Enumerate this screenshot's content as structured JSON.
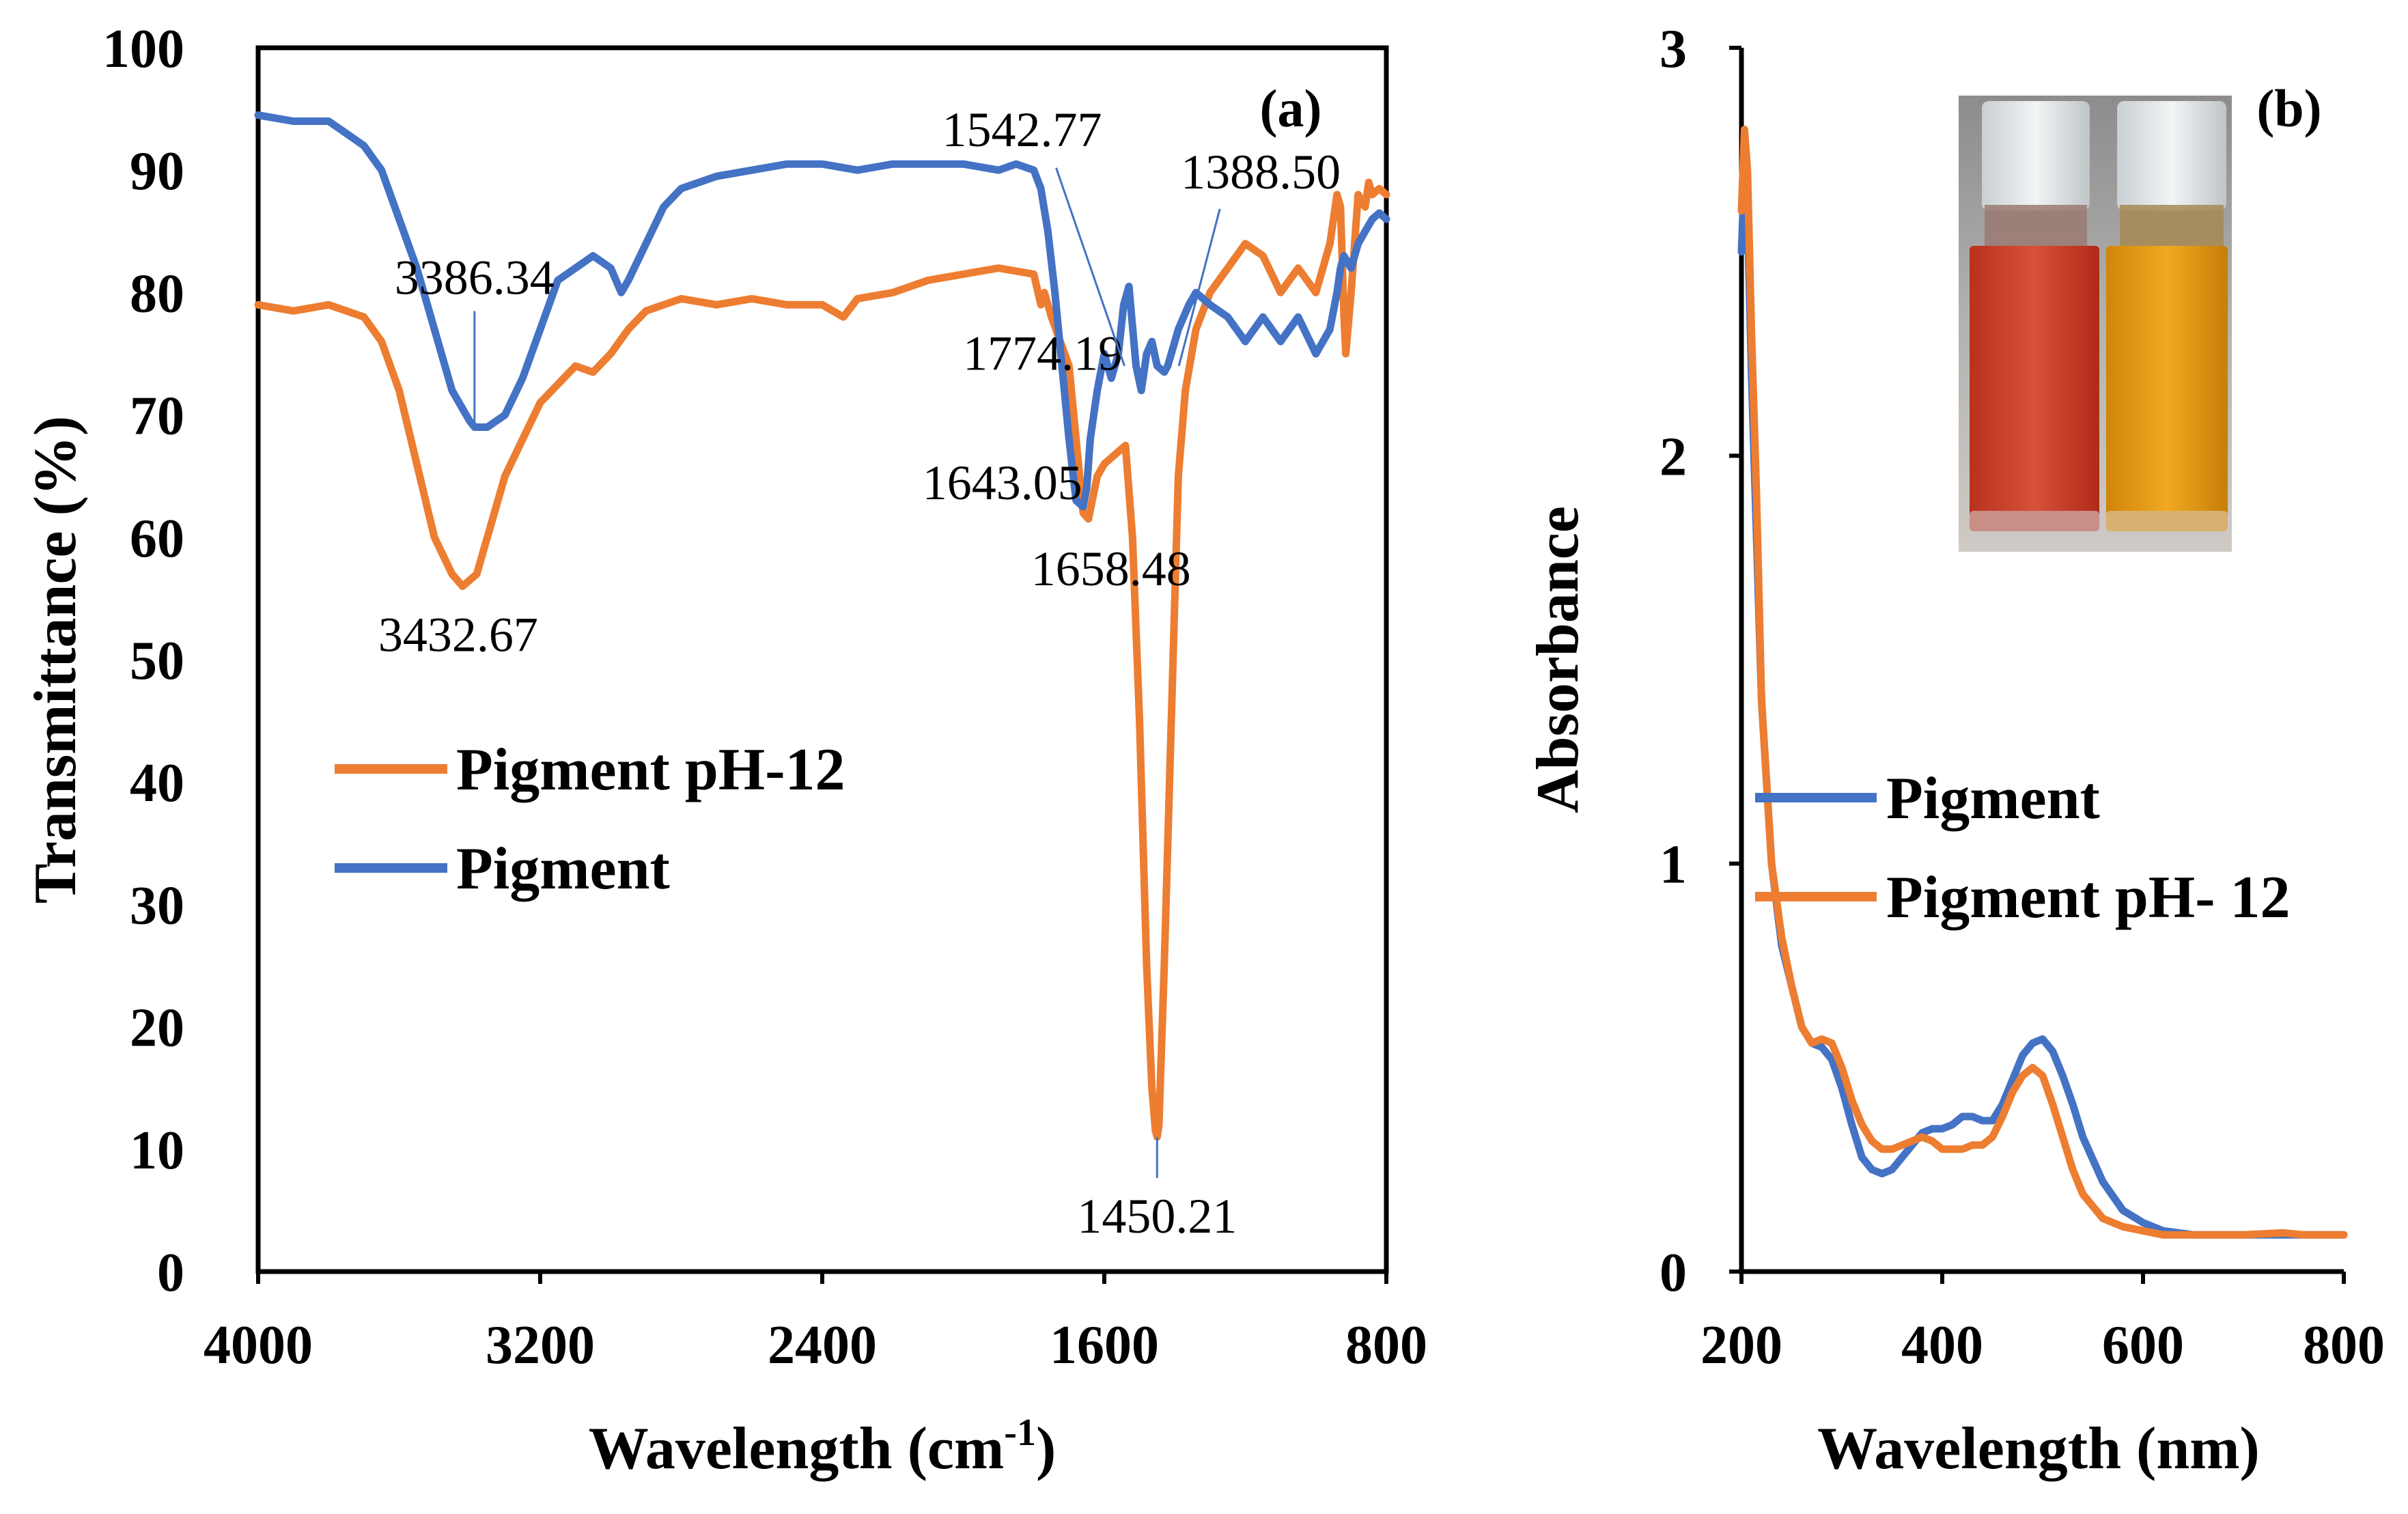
{
  "chart_data": [
    {
      "type": "line",
      "panel": "(a)",
      "xlabel": "Wavelength (cm",
      "xlabel_sup": "-1",
      "xlabel_end": ")",
      "ylabel": "Transmittance (%)",
      "xlim": [
        4000,
        800
      ],
      "ylim": [
        0,
        100
      ],
      "xticks": [
        "4000",
        "3200",
        "2400",
        "1600",
        "800"
      ],
      "xtick_values": [
        4000,
        3200,
        2400,
        1600,
        800
      ],
      "yticks": [
        "0",
        "10",
        "20",
        "30",
        "40",
        "50",
        "60",
        "70",
        "80",
        "90",
        "100"
      ],
      "ytick_values": [
        0,
        10,
        20,
        30,
        40,
        50,
        60,
        70,
        80,
        90,
        100
      ],
      "legend_position": "center-left",
      "series": [
        {
          "name": "Pigment pH-12",
          "color": "#ED7D31",
          "x": [
            4000,
            3900,
            3800,
            3700,
            3650,
            3600,
            3550,
            3500,
            3450,
            3420,
            3380,
            3340,
            3300,
            3250,
            3200,
            3150,
            3100,
            3050,
            3000,
            2950,
            2900,
            2850,
            2800,
            2700,
            2600,
            2500,
            2400,
            2340,
            2300,
            2200,
            2100,
            2000,
            1900,
            1800,
            1780,
            1770,
            1750,
            1700,
            1680,
            1660,
            1645,
            1620,
            1600,
            1560,
            1540,
            1520,
            1500,
            1480,
            1465,
            1455,
            1450,
            1445,
            1430,
            1410,
            1390,
            1370,
            1340,
            1300,
            1250,
            1200,
            1150,
            1100,
            1050,
            1000,
            960,
            940,
            930,
            920,
            915,
            900,
            880,
            860,
            850,
            840,
            820,
            800
          ],
          "y": [
            79,
            78.5,
            79,
            78,
            76,
            72,
            66,
            60,
            57,
            56,
            57,
            61,
            65,
            68,
            71,
            72.5,
            74,
            73.5,
            75,
            77,
            78.5,
            79,
            79.5,
            79,
            79.5,
            79,
            79,
            78,
            79.5,
            80,
            81,
            81.5,
            82,
            81.5,
            79,
            80,
            78,
            74,
            68,
            62,
            61.5,
            65,
            66,
            67,
            67.5,
            60,
            45,
            25,
            15,
            11.5,
            11,
            12,
            25,
            45,
            65,
            72,
            77,
            80,
            82,
            84,
            83,
            80,
            82,
            80,
            84,
            88,
            87,
            78,
            75,
            80,
            88,
            87,
            89,
            88,
            88.5,
            88
          ],
          "annotations": [
            {
              "label": "3432.67",
              "x": 3432.67,
              "y": 56
            },
            {
              "label": "1643.05",
              "x": 1643.05,
              "y": 62
            },
            {
              "label": "1450.21",
              "x": 1450.21,
              "y": 11
            },
            {
              "label": "1774.19",
              "x": 1774.19,
              "y": 79
            }
          ]
        },
        {
          "name": "Pigment",
          "color": "#4472C4",
          "x": [
            4000,
            3900,
            3800,
            3750,
            3700,
            3650,
            3600,
            3550,
            3500,
            3450,
            3400,
            3386,
            3350,
            3300,
            3250,
            3200,
            3150,
            3100,
            3050,
            3000,
            2970,
            2950,
            2900,
            2850,
            2800,
            2700,
            2600,
            2500,
            2400,
            2300,
            2200,
            2100,
            2000,
            1900,
            1850,
            1800,
            1780,
            1760,
            1740,
            1720,
            1700,
            1680,
            1660,
            1650,
            1640,
            1620,
            1600,
            1580,
            1560,
            1545,
            1530,
            1510,
            1495,
            1480,
            1465,
            1450,
            1430,
            1420,
            1400,
            1390,
            1360,
            1340,
            1300,
            1250,
            1200,
            1150,
            1100,
            1050,
            1000,
            960,
            940,
            930,
            920,
            900,
            880,
            860,
            840,
            820,
            800
          ],
          "y": [
            94.5,
            94,
            94,
            93,
            92,
            90,
            86,
            82,
            77,
            72,
            69.5,
            69,
            69,
            70,
            73,
            77,
            81,
            82,
            83,
            82,
            80,
            81,
            84,
            87,
            88.5,
            89.5,
            90,
            90.5,
            90.5,
            90,
            90.5,
            90.5,
            90.5,
            90,
            90.5,
            90,
            88.5,
            85,
            80,
            74,
            68,
            63,
            62.5,
            64,
            68,
            72,
            75,
            73,
            75,
            79,
            80.5,
            74,
            72,
            75,
            76,
            74,
            73.5,
            74,
            76,
            77,
            79,
            80,
            79,
            78,
            76,
            78,
            76,
            78,
            75,
            77,
            80,
            82,
            83,
            82,
            84,
            85,
            86,
            86.5,
            86
          ],
          "annotations": [
            {
              "label": "3386.34",
              "x": 3386.34,
              "y": 69
            },
            {
              "label": "1658.48",
              "x": 1658.48,
              "y": 62.5
            },
            {
              "label": "1542.77",
              "x": 1542.77,
              "y": 74
            },
            {
              "label": "1388.50",
              "x": 1388.5,
              "y": 74
            }
          ]
        }
      ]
    },
    {
      "type": "line",
      "panel": "(b)",
      "xlabel": "Wavelength (nm)",
      "ylabel": "Absorbance",
      "xlim": [
        200,
        800
      ],
      "ylim": [
        0,
        3
      ],
      "xticks": [
        "200",
        "400",
        "600",
        "800"
      ],
      "xtick_values": [
        200,
        400,
        600,
        800
      ],
      "yticks": [
        "0",
        "1",
        "2",
        "3"
      ],
      "ytick_values": [
        0,
        1,
        2,
        3
      ],
      "legend_position": "center-left",
      "inset": "photo of two vials: red (Pigment) and orange-yellow (Pigment pH-12)",
      "series": [
        {
          "name": "Pigment",
          "color": "#4472C4",
          "x": [
            200,
            203,
            206,
            210,
            215,
            220,
            230,
            240,
            250,
            260,
            270,
            280,
            290,
            300,
            310,
            320,
            330,
            340,
            350,
            360,
            370,
            380,
            390,
            400,
            410,
            420,
            430,
            440,
            450,
            460,
            470,
            480,
            490,
            500,
            510,
            520,
            530,
            540,
            560,
            580,
            600,
            620,
            650,
            700,
            750,
            800
          ],
          "y": [
            2.5,
            2.7,
            2.6,
            2.2,
            1.8,
            1.4,
            1.0,
            0.8,
            0.7,
            0.6,
            0.56,
            0.55,
            0.52,
            0.45,
            0.36,
            0.28,
            0.25,
            0.24,
            0.25,
            0.28,
            0.31,
            0.34,
            0.35,
            0.35,
            0.36,
            0.38,
            0.38,
            0.37,
            0.37,
            0.41,
            0.47,
            0.53,
            0.56,
            0.57,
            0.54,
            0.48,
            0.41,
            0.33,
            0.22,
            0.15,
            0.12,
            0.1,
            0.09,
            0.09,
            0.09,
            0.09
          ]
        },
        {
          "name": "Pigment pH- 12",
          "color": "#ED7D31",
          "x": [
            200,
            203,
            206,
            210,
            215,
            220,
            230,
            240,
            250,
            260,
            270,
            280,
            290,
            300,
            310,
            320,
            330,
            340,
            350,
            360,
            370,
            380,
            390,
            400,
            410,
            420,
            430,
            440,
            450,
            460,
            470,
            480,
            490,
            500,
            510,
            520,
            530,
            540,
            560,
            580,
            600,
            620,
            650,
            700,
            740,
            760,
            800
          ],
          "y": [
            2.6,
            2.8,
            2.7,
            2.3,
            1.9,
            1.4,
            1.0,
            0.82,
            0.7,
            0.6,
            0.56,
            0.57,
            0.56,
            0.5,
            0.42,
            0.36,
            0.32,
            0.3,
            0.3,
            0.31,
            0.32,
            0.33,
            0.32,
            0.3,
            0.3,
            0.3,
            0.31,
            0.31,
            0.33,
            0.38,
            0.44,
            0.48,
            0.5,
            0.48,
            0.41,
            0.33,
            0.25,
            0.19,
            0.13,
            0.11,
            0.1,
            0.09,
            0.09,
            0.09,
            0.095,
            0.09,
            0.09
          ]
        }
      ]
    }
  ]
}
